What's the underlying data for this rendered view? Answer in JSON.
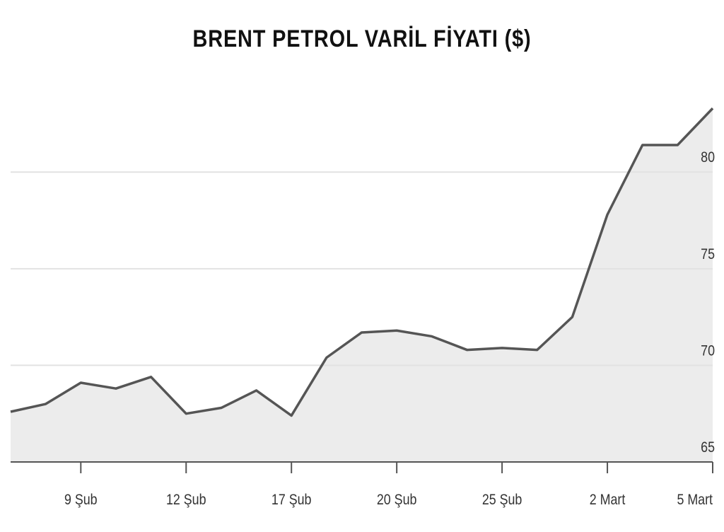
{
  "chart_data": {
    "type": "line",
    "title": "BRENT PETROL VARİL FİYATI ($)",
    "categories": [
      null,
      null,
      "9 Şub",
      null,
      null,
      "12 Şub",
      null,
      null,
      "17 Şub",
      null,
      null,
      "20 Şub",
      null,
      null,
      "25 Şub",
      null,
      null,
      "2 Mart",
      null,
      null,
      "5 Mart"
    ],
    "values": [
      67.6,
      68.0,
      69.1,
      68.8,
      69.4,
      67.5,
      67.8,
      68.7,
      67.4,
      70.4,
      71.7,
      71.8,
      71.5,
      70.8,
      70.9,
      70.8,
      72.5,
      77.8,
      81.4,
      81.4,
      83.3
    ],
    "color": "#555555",
    "area_color": "#ececec",
    "ylim": [
      65,
      84
    ],
    "yticks": [
      65,
      70,
      75,
      80
    ],
    "grid": true
  }
}
